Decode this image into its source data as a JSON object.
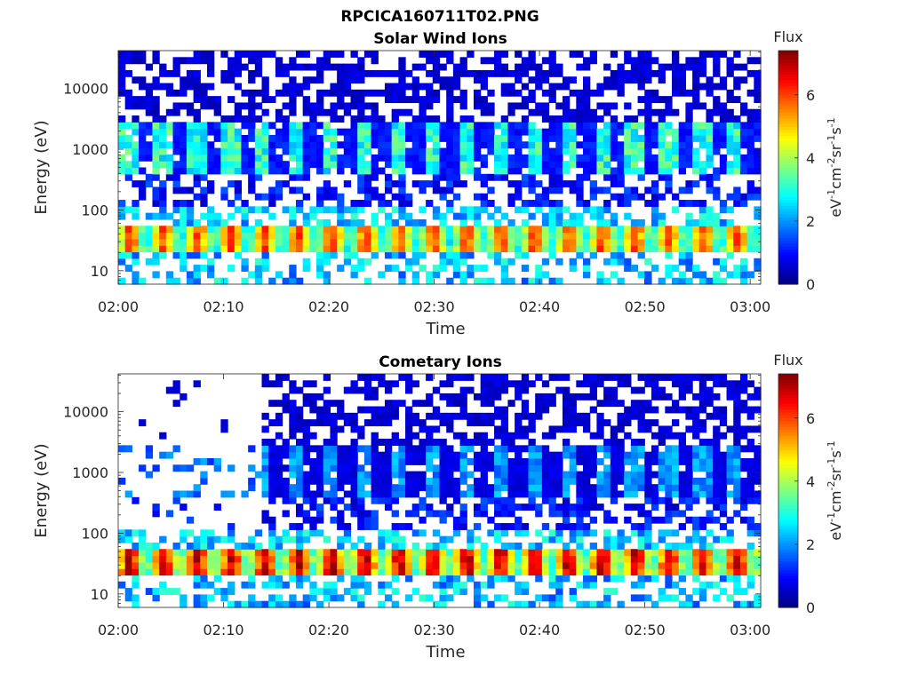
{
  "figure": {
    "title": "RPCICA160711T02.PNG"
  },
  "chart_data": [
    {
      "type": "heatmap",
      "title": "Solar Wind Ions",
      "xlabel": "Time",
      "ylabel": "Energy (eV)",
      "x_ticks": [
        "02:00",
        "02:10",
        "02:20",
        "02:30",
        "02:40",
        "02:50",
        "03:00"
      ],
      "xlim": [
        "02:00",
        "03:01"
      ],
      "y_scale": "log",
      "y_ticks": [
        "10",
        "100",
        "1000",
        "10000"
      ],
      "ylim": [
        6,
        42000
      ],
      "colorbar": {
        "title": "Flux",
        "label": "eV-1cm-2sr-1s-1",
        "ticks": [
          "0",
          "2",
          "4",
          "6"
        ],
        "range": [
          0,
          7.4
        ],
        "colormap": "jet"
      },
      "features": {
        "proton_band_energy_eV": [
          25,
          50
        ],
        "proton_band_flux": 5.0,
        "energetic_band_energy_eV": [
          400,
          2500
        ],
        "energetic_band_flux": 3.0,
        "oscillation_period_min": 3.2,
        "background_flux": 0.6
      }
    },
    {
      "type": "heatmap",
      "title": "Cometary Ions",
      "xlabel": "Time",
      "ylabel": "Energy (eV)",
      "x_ticks": [
        "02:00",
        "02:10",
        "02:20",
        "02:30",
        "02:40",
        "02:50",
        "03:00"
      ],
      "xlim": [
        "02:00",
        "03:01"
      ],
      "y_scale": "log",
      "y_ticks": [
        "10",
        "100",
        "1000",
        "10000"
      ],
      "ylim": [
        6,
        42000
      ],
      "colorbar": {
        "title": "Flux",
        "label": "eV-1cm-2sr-1s-1",
        "ticks": [
          "0",
          "2",
          "4",
          "6"
        ],
        "range": [
          0,
          7.4
        ],
        "colormap": "jet"
      },
      "features": {
        "proton_band_energy_eV": [
          25,
          50
        ],
        "proton_band_flux": 5.8,
        "energetic_band_energy_eV": [
          400,
          2500
        ],
        "energetic_band_flux": 2.0,
        "oscillation_period_min": 3.2,
        "background_flux": 0.6,
        "sparse_until": "02:13"
      }
    }
  ]
}
